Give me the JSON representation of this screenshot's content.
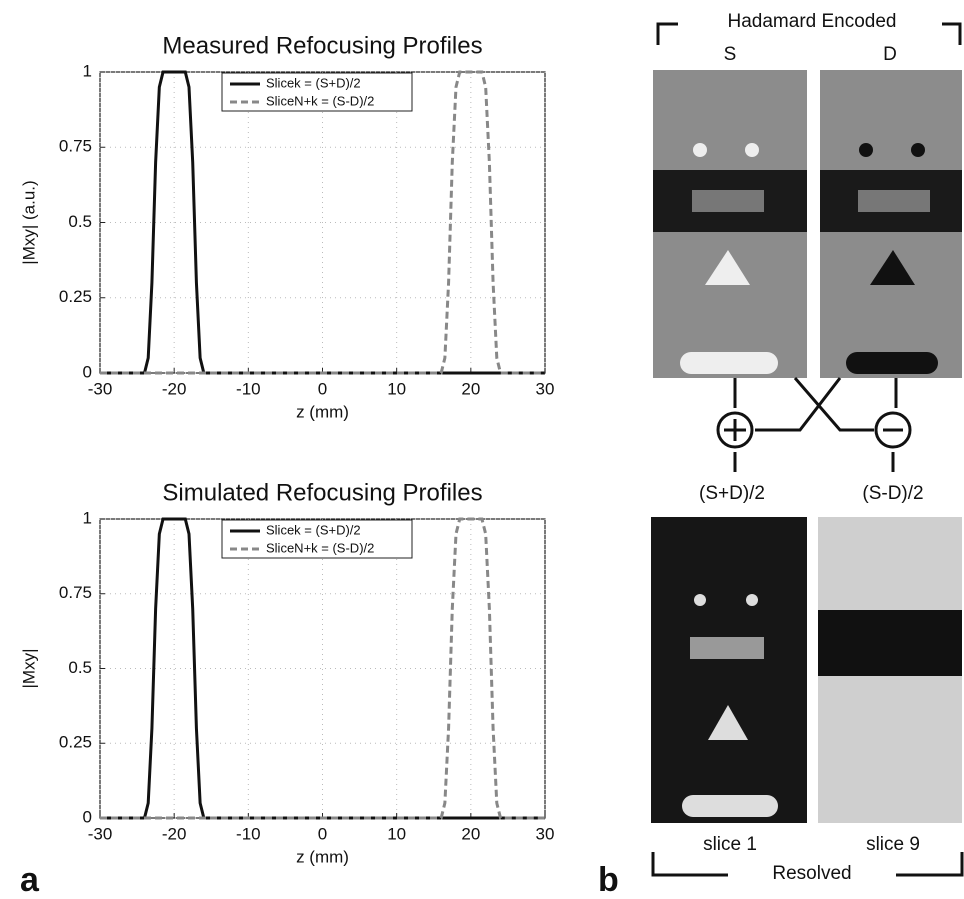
{
  "chart_data": [
    {
      "type": "line",
      "title": "Measured Refocusing Profiles",
      "x_label": "z (mm)",
      "y_label": "|Mxy| (a.u.)",
      "x": [
        -30,
        -25,
        -24,
        -23.5,
        -23,
        -22.5,
        -22,
        -21.5,
        -20,
        -18.5,
        -18,
        -17.5,
        -17,
        -16.5,
        -16,
        -15,
        0,
        15,
        16,
        16.5,
        17,
        17.5,
        18,
        18.5,
        20,
        21.5,
        22,
        22.5,
        23,
        23.5,
        24,
        25,
        30
      ],
      "series": [
        {
          "name": "Slicek = (S+D)/2",
          "color": "#111111",
          "dash": false,
          "values": [
            0,
            0,
            0,
            0.05,
            0.3,
            0.7,
            0.95,
            1,
            1,
            1,
            0.95,
            0.7,
            0.3,
            0.05,
            0,
            0,
            0,
            0,
            0,
            0,
            0,
            0,
            0,
            0,
            0,
            0,
            0,
            0,
            0,
            0,
            0,
            0,
            0
          ]
        },
        {
          "name": "SliceN+k = (S-D)/2",
          "color": "#888888",
          "dash": true,
          "values": [
            0,
            0,
            0,
            0,
            0,
            0,
            0,
            0,
            0,
            0,
            0,
            0,
            0,
            0,
            0,
            0,
            0,
            0,
            0,
            0.05,
            0.3,
            0.7,
            0.95,
            1,
            1,
            1,
            0.95,
            0.7,
            0.3,
            0.05,
            0,
            0,
            0
          ]
        }
      ],
      "xlim": [
        -30,
        30
      ],
      "xticks": [
        -30,
        -20,
        -10,
        0,
        10,
        20,
        30
      ],
      "ylim": [
        0,
        1
      ],
      "yticks": [
        0,
        0.25,
        0.5,
        0.75,
        1
      ],
      "grid": true,
      "legend": "top"
    },
    {
      "type": "line",
      "title": "Simulated Refocusing Profiles",
      "x_label": "z (mm)",
      "y_label": "|Mxy|",
      "x": [
        -30,
        -25,
        -24,
        -23.5,
        -23,
        -22.5,
        -22,
        -21.5,
        -20,
        -18.5,
        -18,
        -17.5,
        -17,
        -16.5,
        -16,
        -15,
        0,
        15,
        16,
        16.5,
        17,
        17.5,
        18,
        18.5,
        20,
        21.5,
        22,
        22.5,
        23,
        23.5,
        24,
        25,
        30
      ],
      "series": [
        {
          "name": "Slicek = (S+D)/2",
          "color": "#111111",
          "dash": false,
          "values": [
            0,
            0,
            0,
            0.05,
            0.3,
            0.7,
            0.95,
            1,
            1,
            1,
            0.95,
            0.7,
            0.3,
            0.05,
            0,
            0,
            0,
            0,
            0,
            0,
            0,
            0,
            0,
            0,
            0,
            0,
            0,
            0,
            0,
            0,
            0,
            0,
            0
          ]
        },
        {
          "name": "SliceN+k = (S-D)/2",
          "color": "#888888",
          "dash": true,
          "values": [
            0,
            0,
            0,
            0,
            0,
            0,
            0,
            0,
            0,
            0,
            0,
            0,
            0,
            0,
            0,
            0,
            0,
            0,
            0,
            0.05,
            0.3,
            0.7,
            0.95,
            1,
            1,
            1,
            0.95,
            0.7,
            0.3,
            0.05,
            0,
            0,
            0
          ]
        }
      ],
      "xlim": [
        -30,
        30
      ],
      "xticks": [
        -30,
        -20,
        -10,
        0,
        10,
        20,
        30
      ],
      "ylim": [
        0,
        1
      ],
      "yticks": [
        0,
        0.25,
        0.5,
        0.75,
        1
      ],
      "grid": true,
      "legend": "top"
    }
  ],
  "panel_a": "a",
  "panel_b": "b",
  "diagram": {
    "header": "Hadamard Encoded",
    "top_left": "S",
    "top_right": "D",
    "mid_left": "(S+D)/2",
    "mid_right": "(S-D)/2",
    "bottom_left": "slice 1",
    "bottom_right": "slice 9",
    "footer": "Resolved"
  }
}
